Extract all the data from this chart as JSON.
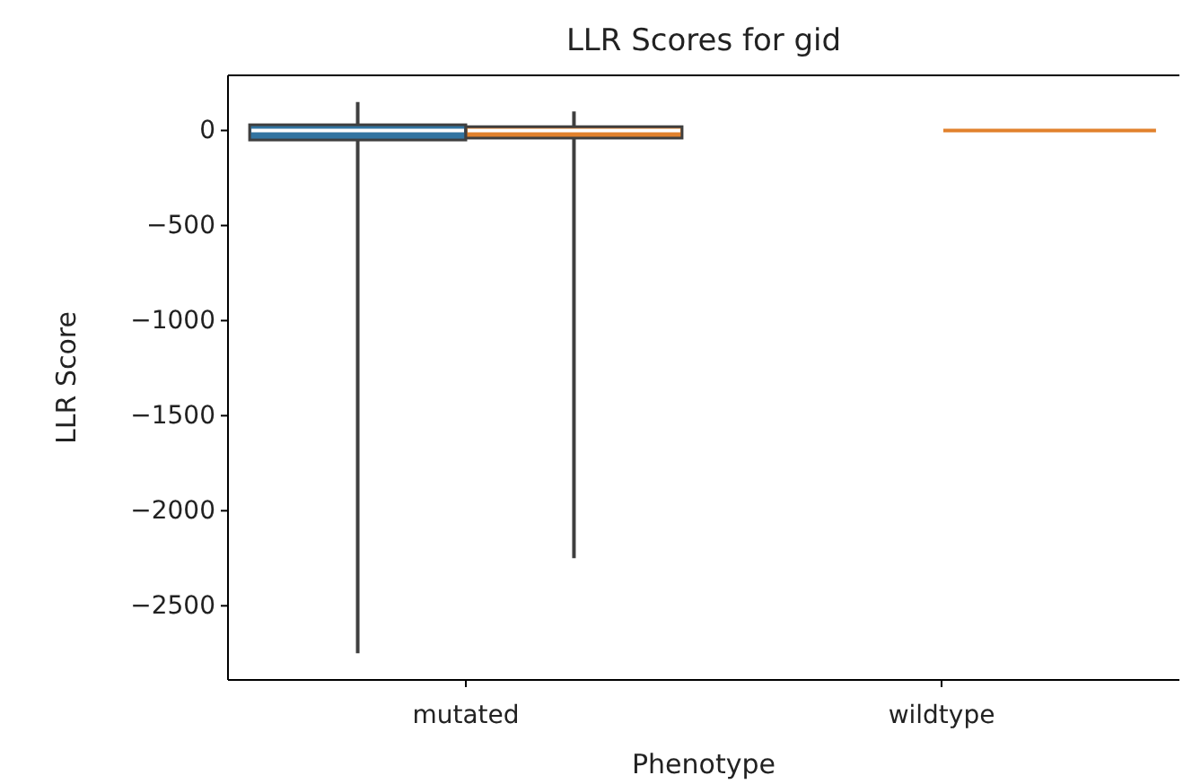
{
  "chart_data": {
    "type": "box",
    "title": "LLR Scores for gid",
    "xlabel": "Phenotype",
    "ylabel": "LLR Score",
    "categories": [
      "mutated",
      "wildtype"
    ],
    "series": [
      {
        "color": "#3274a1",
        "boxes": [
          {
            "low": -2750,
            "q1": -50,
            "median": 0,
            "q3": 30,
            "high": 150
          },
          null
        ]
      },
      {
        "color": "#e1812c",
        "boxes": [
          {
            "low": -2250,
            "q1": -40,
            "median": 0,
            "q3": 20,
            "high": 100
          },
          {
            "low": 0,
            "q1": 0,
            "median": 0,
            "q3": 0,
            "high": 0
          }
        ]
      }
    ],
    "ylim": [
      -2890,
      290
    ],
    "yticks": [
      {
        "value": 0,
        "label": "0"
      },
      {
        "value": -500,
        "label": "−500"
      },
      {
        "value": -1000,
        "label": "−1000"
      },
      {
        "value": -1500,
        "label": "−1500"
      },
      {
        "value": -2000,
        "label": "−2000"
      },
      {
        "value": -2500,
        "label": "−2500"
      }
    ],
    "grid": false
  }
}
